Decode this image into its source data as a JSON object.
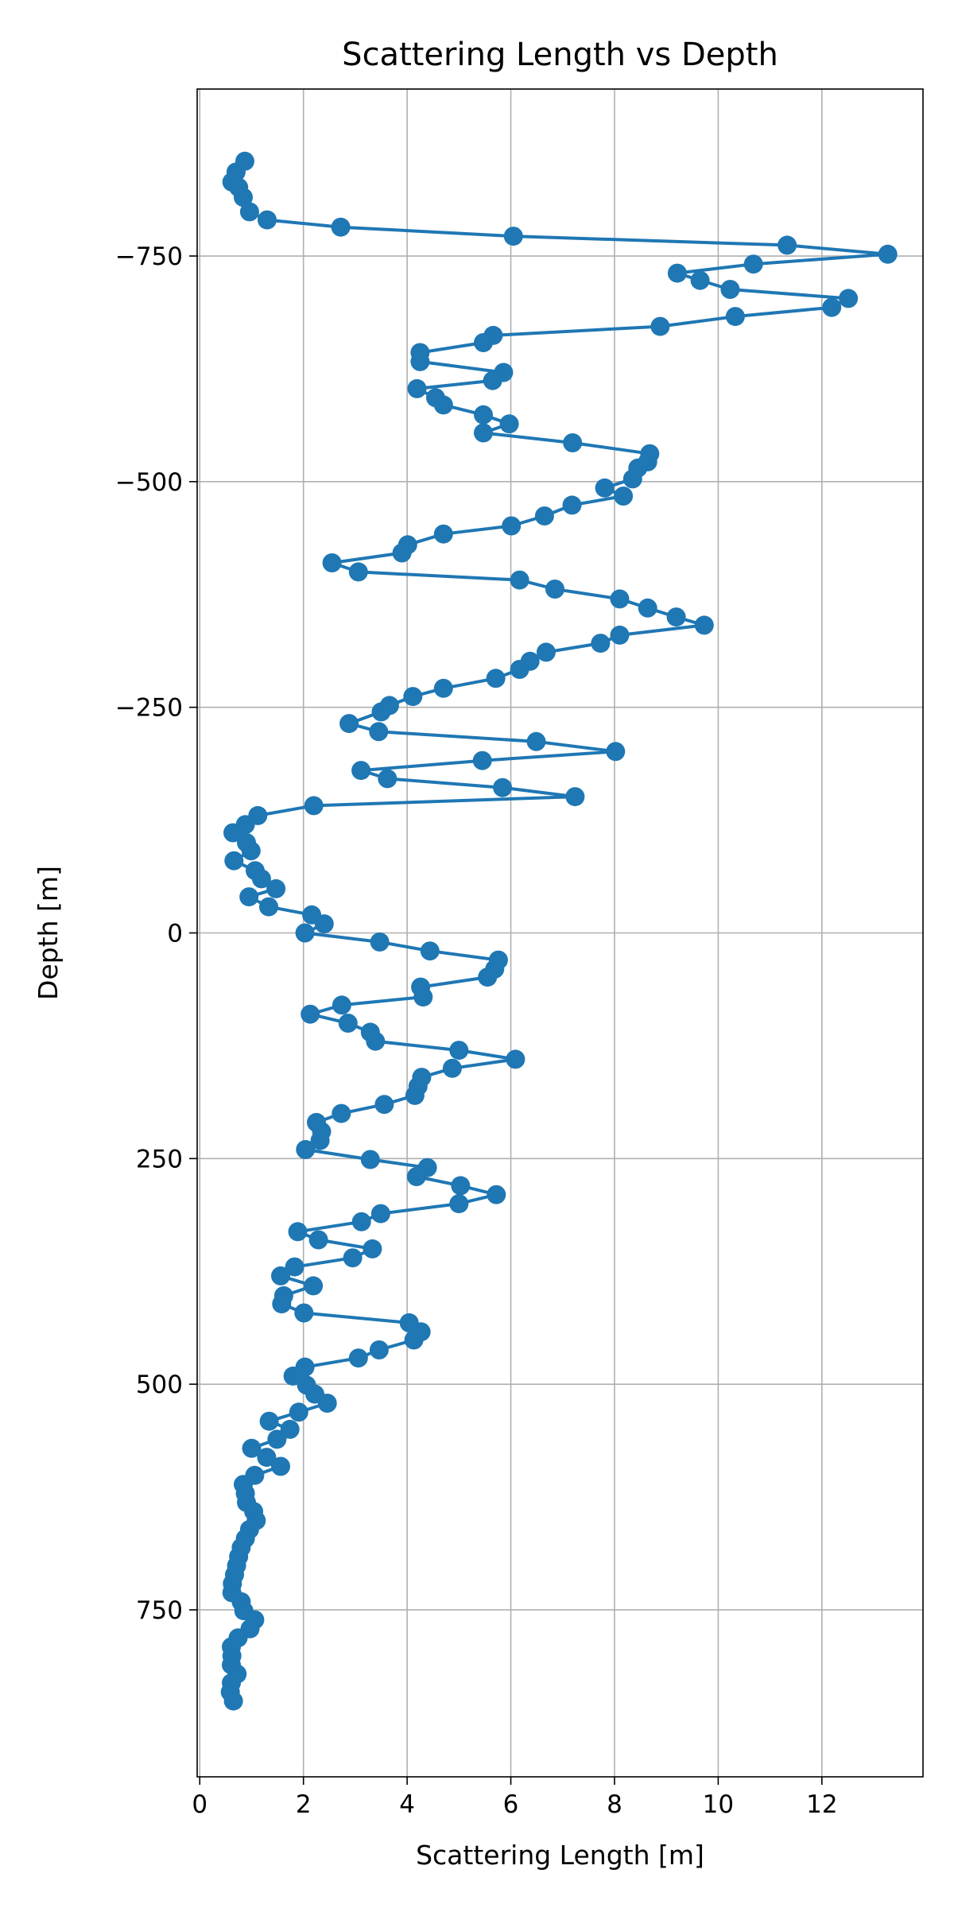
{
  "chart_data": {
    "type": "line",
    "title": "Scattering Length vs Depth",
    "xlabel": "Scattering Length [m]",
    "ylabel": "Depth [m]",
    "xlim": [
      -0.05,
      13.95
    ],
    "ylim": [
      -935,
      935
    ],
    "y_inverted": true,
    "x_ticks": [
      0,
      2,
      4,
      6,
      8,
      10,
      12
    ],
    "x_tick_labels": [
      "0",
      "2",
      "4",
      "6",
      "8",
      "10",
      "12"
    ],
    "y_ticks": [
      -750,
      -500,
      -250,
      0,
      250,
      500,
      750
    ],
    "y_tick_labels": [
      "−750",
      "−500",
      "−250",
      "0",
      "250",
      "500",
      "750"
    ],
    "grid": true,
    "series": [
      {
        "name": "scattering length",
        "color": "#1f77b4",
        "marker": "circle",
        "x": [
          0.87,
          0.7,
          0.62,
          0.75,
          0.84,
          0.96,
          1.3,
          2.72,
          6.05,
          11.33,
          13.27,
          10.68,
          9.21,
          9.65,
          10.23,
          12.51,
          12.19,
          10.33,
          8.88,
          5.66,
          5.47,
          4.25,
          4.25,
          5.86,
          5.65,
          4.19,
          4.55,
          4.7,
          5.47,
          5.97,
          5.47,
          7.19,
          8.68,
          8.64,
          8.45,
          8.35,
          7.81,
          8.17,
          7.18,
          6.65,
          6.01,
          4.7,
          4.01,
          3.9,
          2.55,
          3.06,
          6.17,
          6.85,
          8.1,
          8.64,
          9.19,
          9.73,
          8.1,
          7.73,
          6.68,
          6.37,
          6.17,
          5.71,
          4.7,
          4.11,
          3.66,
          3.5,
          2.88,
          3.45,
          6.49,
          8.02,
          5.45,
          3.11,
          3.62,
          5.84,
          7.24,
          2.2,
          1.12,
          0.88,
          0.64,
          0.9,
          0.99,
          0.66,
          1.07,
          1.19,
          1.47,
          0.95,
          1.33,
          2.16,
          2.4,
          2.03,
          3.47,
          4.44,
          5.76,
          5.69,
          5.55,
          4.26,
          4.31,
          2.74,
          2.13,
          2.86,
          3.29,
          3.39,
          5.0,
          6.09,
          4.87,
          4.28,
          4.21,
          4.15,
          3.56,
          2.73,
          2.25,
          2.35,
          2.32,
          2.04,
          3.29,
          4.39,
          4.18,
          5.03,
          5.72,
          5.0,
          3.49,
          3.12,
          1.89,
          2.29,
          3.33,
          2.95,
          1.83,
          1.56,
          2.19,
          1.62,
          1.58,
          2.01,
          4.04,
          4.27,
          4.13,
          3.46,
          3.06,
          2.03,
          1.8,
          2.06,
          2.22,
          2.46,
          1.91,
          1.34,
          1.74,
          1.49,
          1.0,
          1.29,
          1.56,
          1.06,
          0.84,
          0.88,
          0.9,
          1.04,
          1.09,
          0.96,
          0.88,
          0.8,
          0.75,
          0.71,
          0.67,
          0.63,
          0.62,
          0.8,
          0.85,
          1.06,
          0.97,
          0.74,
          0.61,
          0.62,
          0.61,
          0.72,
          0.61,
          0.59,
          0.65
        ],
        "y": [
          -855,
          -843,
          -832,
          -826,
          -815,
          -799,
          -790,
          -782,
          -772,
          -762,
          -752,
          -741,
          -731,
          -723,
          -713,
          -703,
          -693,
          -683,
          -672,
          -662,
          -654,
          -643,
          -633,
          -621,
          -612,
          -603,
          -593,
          -585,
          -574,
          -564,
          -554,
          -543,
          -531,
          -522,
          -515,
          -503,
          -493,
          -484,
          -474,
          -462,
          -451,
          -442,
          -430,
          -421,
          -410,
          -400,
          -391,
          -381,
          -370,
          -360,
          -350,
          -341,
          -330,
          -321,
          -311,
          -301,
          -292,
          -282,
          -271,
          -262,
          -252,
          -245,
          -232,
          -223,
          -212,
          -201,
          -191,
          -180,
          -171,
          -161,
          -151,
          -141,
          -130,
          -120,
          -111,
          -100,
          -91,
          -80,
          -69,
          -60,
          -49,
          -40,
          -29,
          -20,
          -10,
          0,
          10,
          20,
          30,
          40,
          49,
          60,
          71,
          80,
          90,
          100,
          110,
          120,
          130,
          140,
          150,
          160,
          170,
          180,
          190,
          200,
          210,
          220,
          230,
          240,
          251,
          260,
          270,
          280,
          290,
          300,
          311,
          320,
          331,
          340,
          350,
          360,
          370,
          380,
          391,
          402,
          411,
          421,
          432,
          442,
          451,
          462,
          471,
          481,
          491,
          501,
          511,
          521,
          531,
          541,
          550,
          561,
          571,
          581,
          591,
          601,
          611,
          621,
          631,
          641,
          651,
          661,
          671,
          681,
          691,
          701,
          711,
          721,
          731,
          741,
          751,
          761,
          771,
          781,
          791,
          801,
          811,
          821,
          831,
          841,
          851
        ]
      }
    ]
  }
}
